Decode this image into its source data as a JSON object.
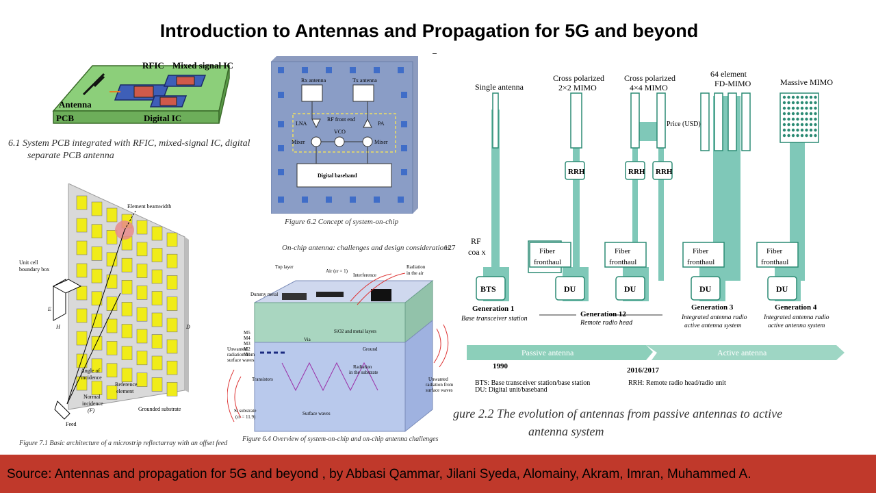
{
  "title": "Introduction to Antennas and Propagation for 5G and beyond",
  "footer": {
    "text": "Source: Antennas and propagation for 5G and beyond , by Abbasi Qammar, Jilani Syeda, Alomainy, Akram, Imran, Muhammed A."
  },
  "fig61": {
    "labels": {
      "rfic": "RFIC",
      "mixed": "Mixed signal IC",
      "antenna": "Antenna",
      "pcb": "PCB",
      "digital": "Digital IC"
    },
    "caption_line1": "6.1   System PCB integrated with RFIC, mixed-signal IC, digital",
    "caption_line2": "separate PCB antenna"
  },
  "fig62": {
    "labels": {
      "rx": "Rx antenna",
      "tx": "Tx antenna",
      "rf": "RF front end",
      "lna": "LNA",
      "pa": "PA",
      "vco": "VCO",
      "mixer_l": "Mixer",
      "mixer_r": "Mixer",
      "baseband": "Digital baseband"
    },
    "caption": "Figure 6.2    Concept of system-on-chip"
  },
  "fig71": {
    "labels": {
      "beam": "Element beamwidth",
      "unit1": "Unit cell",
      "unit2": "boundary box",
      "e": "E",
      "h": "H",
      "d": "D",
      "angle1": "Angle of",
      "angle2": "incidence",
      "ref1": "Reference",
      "ref2": "element",
      "normal1": "Normal",
      "normal2": "incidence",
      "normal3": "(F)",
      "ground": "Grounded substrate",
      "feed": "Feed"
    },
    "caption": "Figure 7.1    Basic architecture of a microstrip reflectarray with an offset feed"
  },
  "fig64": {
    "header": "On-chip antenna: challenges and design considerations",
    "page": "127",
    "labels": {
      "top": "Top layer",
      "air": "Air (εr = 1)",
      "interference": "Interference",
      "rad_air1": "Radiation",
      "rad_air2": "in the air",
      "dummy": "Dummy metal",
      "m5": "M5",
      "m4": "M4",
      "m3": "M3",
      "m2": "M2",
      "m1": "M1",
      "sio2": "SiO2 and metal layers",
      "via": "Via",
      "ground": "Ground",
      "unw_l1": "Unwanted",
      "unw_l2": "radiation from",
      "unw_l3": "surface waves",
      "transistors": "Transistors",
      "rad_sub1": "Radiation",
      "rad_sub2": "in the substrate",
      "unw_r1": "Unwanted",
      "unw_r2": "radiation from",
      "unw_r3": "surface waves",
      "si1": "Si substrate",
      "si2": "(εr = 11.9)",
      "surface": "Surface waves"
    },
    "caption": "Figure 6.4    Overview of system-on-chip and on-chip antenna challenges"
  },
  "fig22": {
    "antenna_labels": [
      "Single antenna",
      "Cross polarized",
      "2×2 MIMO",
      "Cross polarized",
      "4×4 MIMO",
      "64 element",
      "FD-MIMO",
      "Massive MIMO"
    ],
    "price": "Price (USD)",
    "rf1": "RF",
    "rf2": "coa x",
    "bts": "BTS",
    "rrh": "RRH",
    "du": "DU",
    "fiber1": "Fiber",
    "fiber2": "fronthaul",
    "gen1": "Generation 1",
    "gen1_sub": "Base transceiver station",
    "gen12": "Generation 12",
    "gen12_sub": "Remote radio head",
    "gen3": "Generation 3",
    "gen3_sub1": "Integrated antenna radio",
    "gen3_sub2": "active antenna system",
    "gen4": "Generation 4",
    "gen4_sub1": "Integrated antenna radio",
    "gen4_sub2": "active antenna system",
    "passive": "Passive antenna",
    "active": "Active antenna",
    "year1": "1990",
    "year2": "2016/2017",
    "legend_bts": "BTS:  Base transceiver station/base station",
    "legend_du": "DU:   Digital unit/baseband",
    "legend_rrh": "RRH:      Remote radio head/radio unit",
    "caption_line1": "gure 2.2    The evolution of antennas from passive antennas to active",
    "caption_line2": "antenna system",
    "colors": {
      "teal": "#7fc8b8",
      "teal_dark": "#2a8a73",
      "arrow": "#9ed6c4"
    }
  }
}
